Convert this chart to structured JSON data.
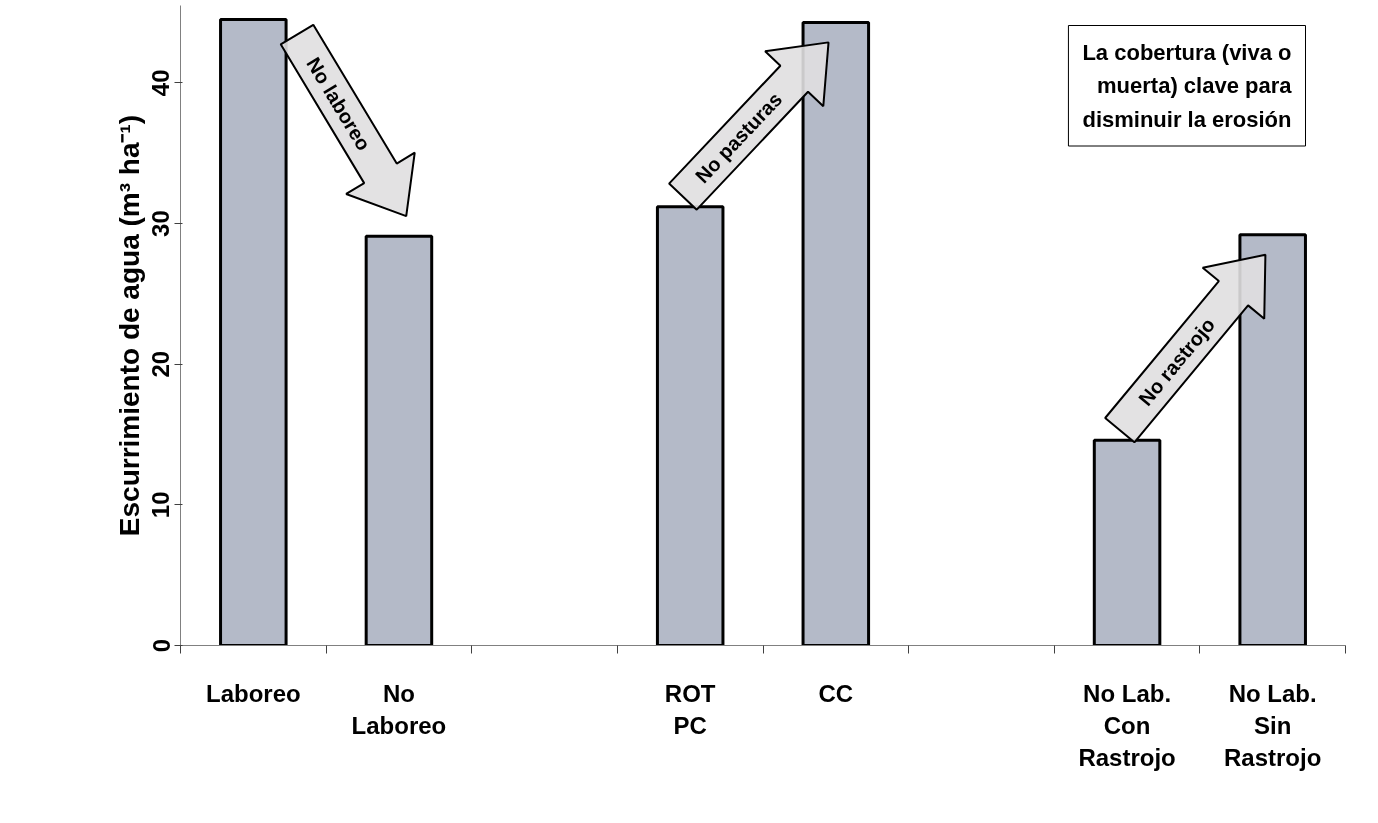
{
  "chart_data": {
    "type": "bar",
    "ylabel": "Escurrimiento de agua (m³ ha⁻¹)",
    "categories": [
      "Laboreo",
      "No\nLaboreo",
      null,
      "ROT\nPC",
      "CC",
      null,
      "No Lab.\nCon\nRastrojo",
      "No Lab.\nSin\nRastrojo"
    ],
    "values": [
      44.5,
      29.1,
      null,
      31.2,
      44.3,
      null,
      14.6,
      29.2
    ],
    "color": "#b4bac8",
    "ylim": [
      0,
      45.5
    ],
    "yticks": [
      0,
      10,
      20,
      30,
      40
    ],
    "grid": false,
    "annotations": [
      "No laboreo",
      "No pasturas",
      "No rastrojo",
      "La cobertura (viva o\nmuerta) clave para\ndisminuir la erosión"
    ]
  }
}
